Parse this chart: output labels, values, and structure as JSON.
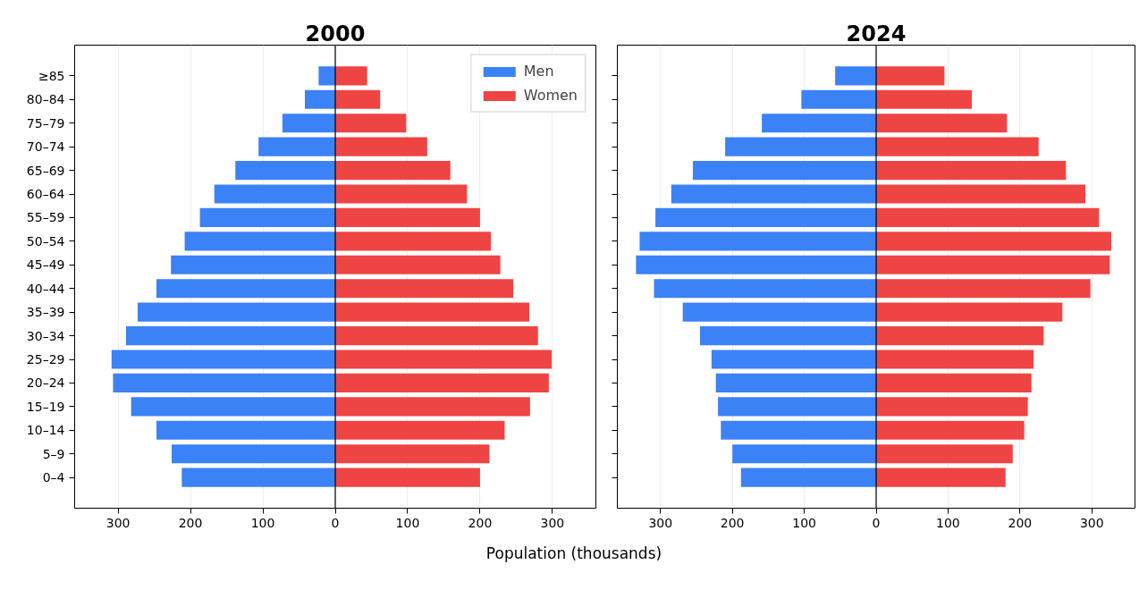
{
  "chart_data": [
    {
      "type": "bar",
      "orientation": "horizontal",
      "title": "2000",
      "xlabel": "Population (thousands)",
      "categories": [
        "≥85",
        "80–84",
        "75–79",
        "70–74",
        "65–69",
        "60–64",
        "55–59",
        "50–54",
        "45–49",
        "40–44",
        "35–39",
        "30–34",
        "25–29",
        "20–24",
        "15–19",
        "10–14",
        "5–9",
        "0–4"
      ],
      "series": [
        {
          "name": "Men",
          "color": "#3b82f6",
          "values": [
            -23,
            -42,
            -73,
            -106,
            -138,
            -167,
            -187,
            -208,
            -227,
            -247,
            -273,
            -289,
            -309,
            -307,
            -282,
            -247,
            -226,
            -212
          ]
        },
        {
          "name": "Women",
          "color": "#ef4444",
          "values": [
            44,
            62,
            98,
            127,
            159,
            182,
            200,
            215,
            228,
            246,
            268,
            280,
            299,
            295,
            269,
            234,
            213,
            200
          ]
        }
      ],
      "xlim": [
        -360,
        360
      ],
      "xticks": [
        {
          "value": -300,
          "label": "300"
        },
        {
          "value": -200,
          "label": "200"
        },
        {
          "value": -100,
          "label": "100"
        },
        0,
        100,
        200,
        300
      ],
      "ref_lines": [
        {
          "axis": "x",
          "value": 0,
          "color": "#000000"
        }
      ],
      "grid": "x",
      "legend": "top right",
      "stacked": true
    },
    {
      "type": "bar",
      "orientation": "horizontal",
      "title": "2024",
      "categories": [
        null,
        null,
        null,
        null,
        null,
        null,
        null,
        null,
        null,
        null,
        null,
        null,
        null,
        null,
        null,
        null,
        null,
        null
      ],
      "series": [
        {
          "color": "#3b82f6",
          "values": [
            -57,
            -104,
            -159,
            -210,
            -255,
            -285,
            -307,
            -329,
            -334,
            -309,
            -269,
            -245,
            -229,
            -223,
            -220,
            -216,
            -200,
            -188
          ]
        },
        {
          "color": "#ef4444",
          "values": [
            95,
            133,
            182,
            226,
            264,
            291,
            310,
            327,
            325,
            298,
            259,
            233,
            219,
            216,
            211,
            206,
            190,
            180
          ]
        }
      ],
      "xlim": [
        -360,
        360
      ],
      "xticks": [
        {
          "value": -300,
          "label": "300"
        },
        {
          "value": -200,
          "label": "200"
        },
        {
          "value": -100,
          "label": "100"
        },
        0,
        100,
        200,
        300
      ],
      "ref_lines": [
        {
          "axis": "x",
          "value": 0,
          "color": "#000000"
        }
      ],
      "grid": "x",
      "tick_labels": "x",
      "stacked": true
    }
  ]
}
